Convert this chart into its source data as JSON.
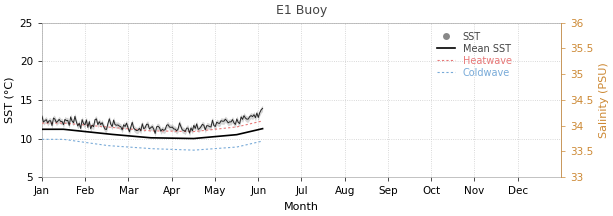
{
  "title": "E1 Buoy",
  "xlabel": "Month",
  "ylabel_left": "SST (°C)",
  "ylabel_right": "Salinity (PSU)",
  "months": [
    "Jan",
    "Feb",
    "Mar",
    "Apr",
    "May",
    "Jun",
    "Jul",
    "Aug",
    "Sep",
    "Oct",
    "Nov",
    "Dec"
  ],
  "ylim_left": [
    5,
    25
  ],
  "ylim_right": [
    33,
    36
  ],
  "yticks_left": [
    5,
    10,
    15,
    20,
    25
  ],
  "yticks_right": [
    33,
    33.5,
    34,
    34.5,
    35,
    35.5,
    36
  ],
  "sst_color": "#888888",
  "mean_sst_color": "#000000",
  "heatwave_color": "#e87878",
  "coldwave_color": "#78aad8",
  "background_color": "#ffffff",
  "grid_color": "#cccccc",
  "title_color": "#444444",
  "right_axis_color": "#cc8833",
  "salinity_label_color": "#cc8833",
  "n_days_shown": 155,
  "mean_sst_jan_jun": [
    11.2,
    10.6,
    10.1,
    10.0,
    10.5,
    11.8
  ],
  "sst_obs_jan_jun": [
    12.3,
    11.8,
    11.3,
    11.2,
    12.5,
    14.2
  ],
  "heatwave_jan_jun": [
    12.0,
    11.5,
    11.0,
    10.9,
    11.5,
    12.8
  ],
  "coldwave_jan_jun": [
    9.9,
    9.1,
    8.7,
    8.5,
    8.9,
    10.2
  ],
  "sst_noise_std": 0.35,
  "title_fontsize": 9,
  "axis_label_fontsize": 8,
  "tick_fontsize": 7.5
}
